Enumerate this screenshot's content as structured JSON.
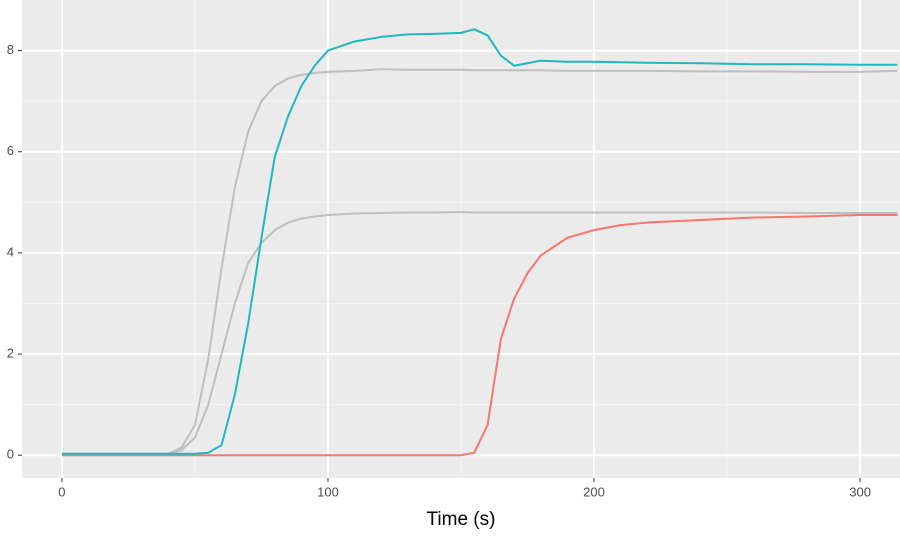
{
  "chart_data": {
    "type": "line",
    "x_label": "Time (s)",
    "x": [
      0,
      10,
      20,
      30,
      40,
      45,
      50,
      55,
      60,
      65,
      70,
      75,
      80,
      85,
      90,
      95,
      100,
      110,
      120,
      130,
      140,
      150,
      155,
      160,
      165,
      170,
      175,
      180,
      190,
      200,
      210,
      220,
      240,
      260,
      280,
      300,
      314
    ],
    "series": [
      {
        "color": "#bebebe",
        "values": [
          0.03,
          0.03,
          0.03,
          0.03,
          0.03,
          0.1,
          0.35,
          1.0,
          2.0,
          3.0,
          3.8,
          4.2,
          4.45,
          4.6,
          4.68,
          4.72,
          4.75,
          4.78,
          4.79,
          4.8,
          4.8,
          4.81,
          4.8,
          4.8,
          4.8,
          4.8,
          4.8,
          4.8,
          4.8,
          4.8,
          4.8,
          4.8,
          4.8,
          4.8,
          4.79,
          4.79,
          4.79
        ]
      },
      {
        "color": "#bebebe",
        "values": [
          0.03,
          0.03,
          0.03,
          0.03,
          0.03,
          0.15,
          0.6,
          1.9,
          3.7,
          5.3,
          6.4,
          7.0,
          7.3,
          7.45,
          7.52,
          7.56,
          7.58,
          7.6,
          7.63,
          7.62,
          7.62,
          7.62,
          7.61,
          7.61,
          7.61,
          7.61,
          7.61,
          7.61,
          7.6,
          7.6,
          7.6,
          7.6,
          7.59,
          7.59,
          7.58,
          7.58,
          7.6
        ]
      },
      {
        "color": "#f8766d",
        "values": [
          0,
          0,
          0,
          0,
          0,
          0,
          0,
          0,
          0,
          0,
          0,
          0,
          0,
          0,
          0,
          0,
          0,
          0,
          0,
          0,
          0,
          0,
          0.05,
          0.6,
          2.3,
          3.1,
          3.6,
          3.95,
          4.3,
          4.45,
          4.55,
          4.6,
          4.65,
          4.7,
          4.72,
          4.75,
          4.75
        ]
      },
      {
        "color": "#1fb8c0",
        "values": [
          0.03,
          0.03,
          0.03,
          0.03,
          0.03,
          0.03,
          0.03,
          0.05,
          0.2,
          1.2,
          2.6,
          4.3,
          5.9,
          6.7,
          7.3,
          7.7,
          8.0,
          8.18,
          8.27,
          8.32,
          8.33,
          8.35,
          8.42,
          8.3,
          7.9,
          7.7,
          7.75,
          7.8,
          7.78,
          7.78,
          7.77,
          7.76,
          7.75,
          7.73,
          7.73,
          7.72,
          7.72
        ]
      }
    ],
    "xlim": [
      -15,
      315
    ],
    "xticks": [
      0,
      100,
      200,
      300
    ],
    "ylim": [
      -0.45,
      9.0
    ],
    "yticks": [
      0,
      2,
      4,
      6,
      8
    ],
    "grid": true
  }
}
